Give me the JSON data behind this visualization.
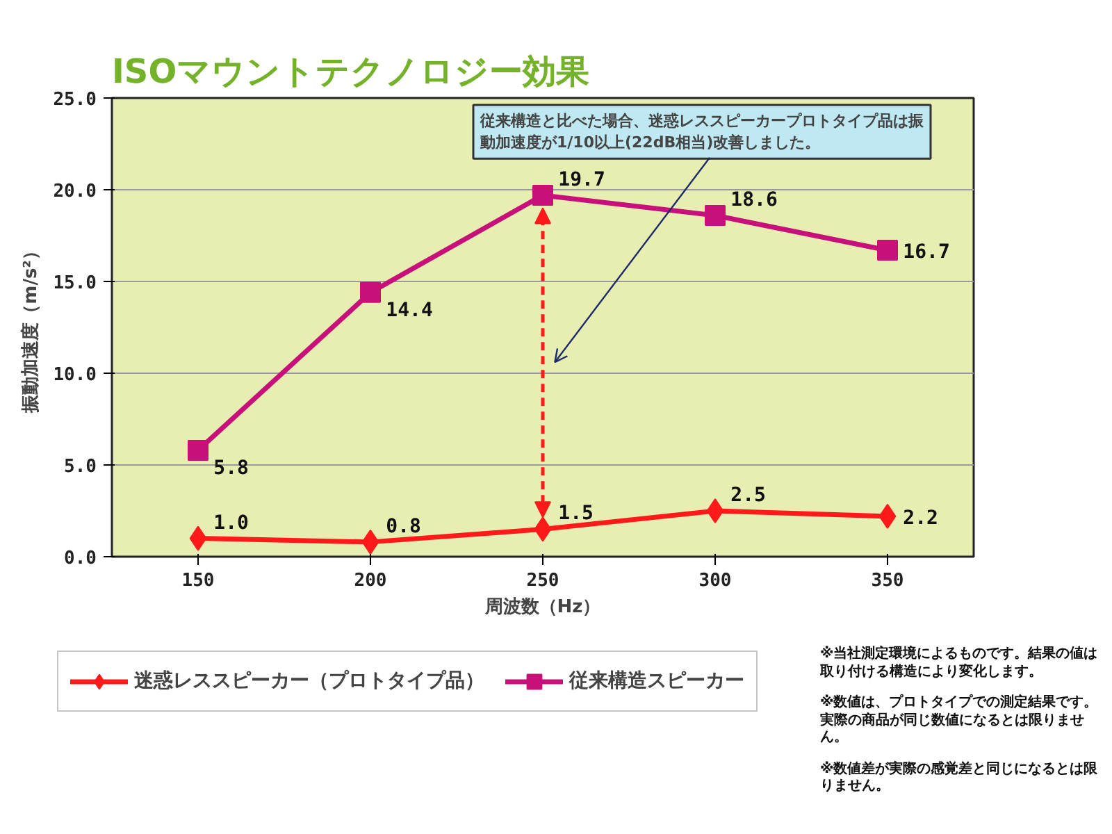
{
  "chart_data": {
    "type": "line",
    "title": "ISOマウントテクノロジー効果",
    "xlabel": "周波数（Hz）",
    "ylabel": "振動加速度（m/s²）",
    "categories": [
      "150",
      "200",
      "250",
      "300",
      "350"
    ],
    "series": [
      {
        "name": "迷惑レススピーカー（プロトタイプ品）",
        "color": "#ff1a1a",
        "marker": "diamond",
        "values": [
          1.0,
          0.8,
          1.5,
          2.5,
          2.2
        ],
        "value_labels": [
          "1.0",
          "0.8",
          "1.5",
          "2.5",
          "2.2"
        ]
      },
      {
        "name": "従来構造スピーカー",
        "color": "#c8107a",
        "marker": "square",
        "values": [
          5.8,
          14.4,
          19.7,
          18.6,
          16.7
        ],
        "value_labels": [
          "5.8",
          "14.4",
          "19.7",
          "18.6",
          "16.7"
        ]
      }
    ],
    "ylim": [
      0,
      25
    ],
    "yticks": [
      {
        "value": 0,
        "label": "0.0"
      },
      {
        "value": 5,
        "label": "5.0"
      },
      {
        "value": 10,
        "label": "10.0"
      },
      {
        "value": 15,
        "label": "15.0"
      },
      {
        "value": 20,
        "label": "20.0"
      },
      {
        "value": 25,
        "label": "25.0"
      }
    ],
    "grid": "y",
    "legend": "bottom",
    "line_style": "solid",
    "annotations": [
      "従来構造と比べた場合、迷惑レススピーカープロトタイプ品は振動加速度が1/10以上(22dB相当)改善しました。",
      "※当社測定環境によるものです。結果の値は取り付ける構造により変化します。",
      "※数値は、プロトタイプでの測定結果です。実際の商品が同じ数値になるとは限りません。",
      "※数値差が実際の感覚差と同じになるとは限りません。"
    ]
  }
}
